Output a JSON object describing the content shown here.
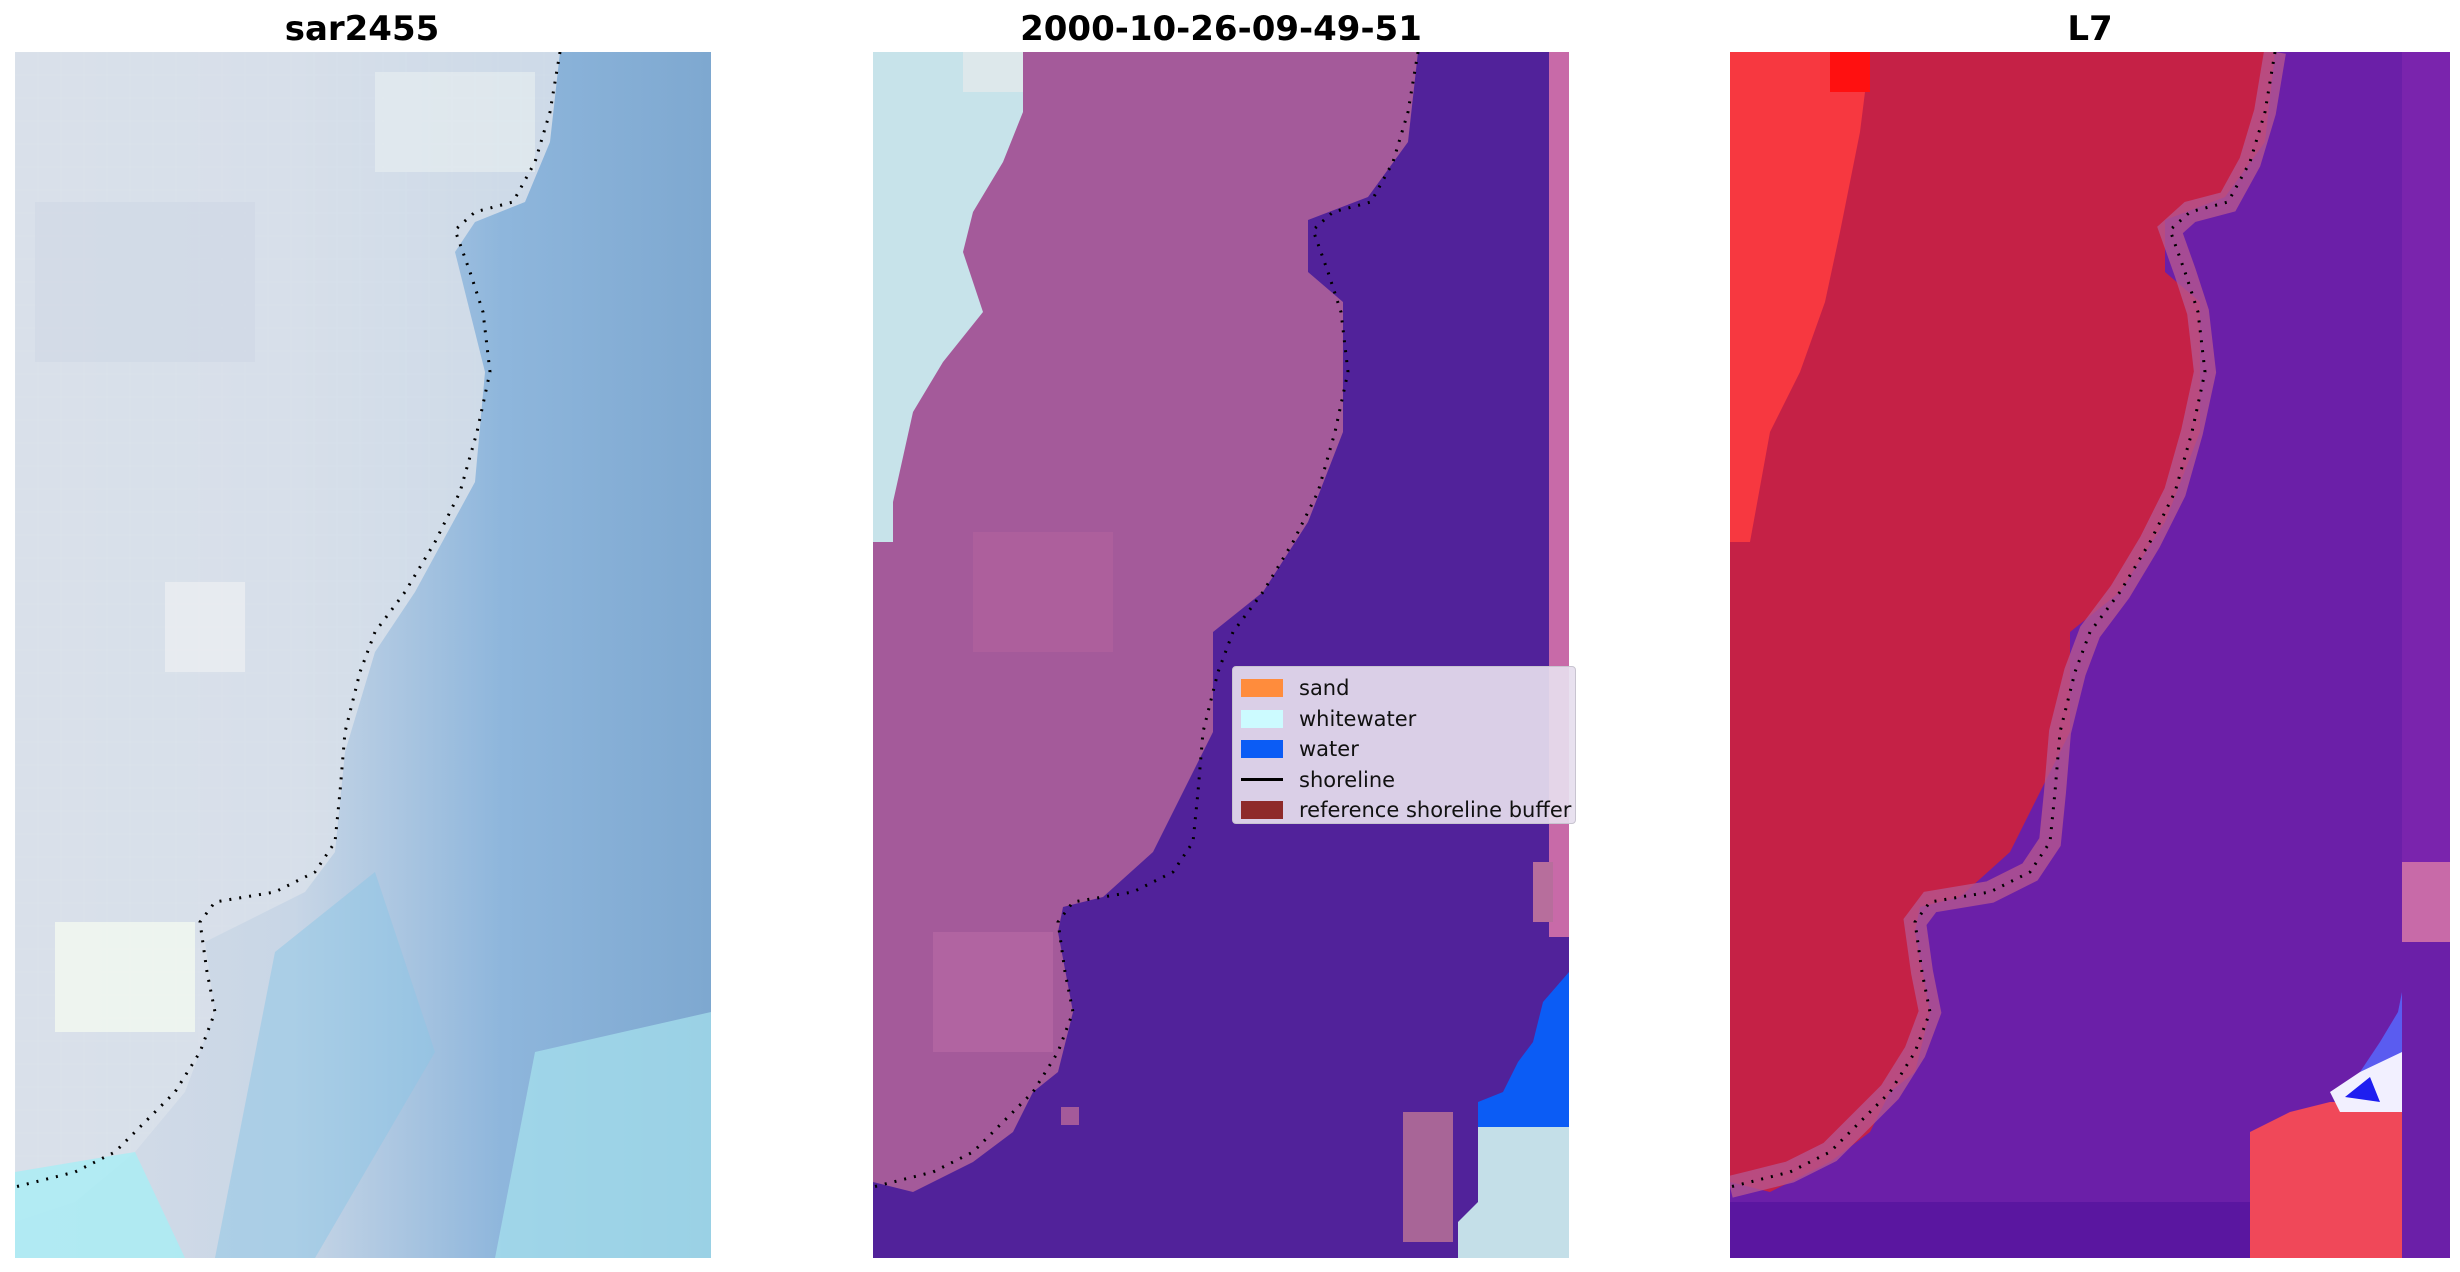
{
  "panels": [
    {
      "title": "sar2455"
    },
    {
      "title": "2000-10-26-09-49-51"
    },
    {
      "title": "L7"
    }
  ],
  "legend": {
    "items": [
      {
        "label": "sand",
        "kind": "patch",
        "color": "#ff8c3c"
      },
      {
        "label": "whitewater",
        "kind": "patch",
        "color": "#ccfbff"
      },
      {
        "label": "water",
        "kind": "patch",
        "color": "#0b5cf5"
      },
      {
        "label": "shoreline",
        "kind": "line",
        "color": "#000000"
      },
      {
        "label": "reference shoreline buffer",
        "kind": "patch",
        "color": "#8e2a2a"
      }
    ]
  },
  "colors": {
    "rgb_beach": "#d4dce8",
    "rgb_water": "#8ab2d8",
    "rgb_surf": "#a6e6ef",
    "class_buffer": "#a45a9a",
    "class_water_dark": "#51229a",
    "class_water_bright": "#0b5cf5",
    "class_whitewater": "#c7e3ea",
    "mndwi_land": "#c52146",
    "mndwi_land_bright": "#ff3c40",
    "mndwi_water": "#6b1fa8",
    "shoreline": "#000000"
  }
}
